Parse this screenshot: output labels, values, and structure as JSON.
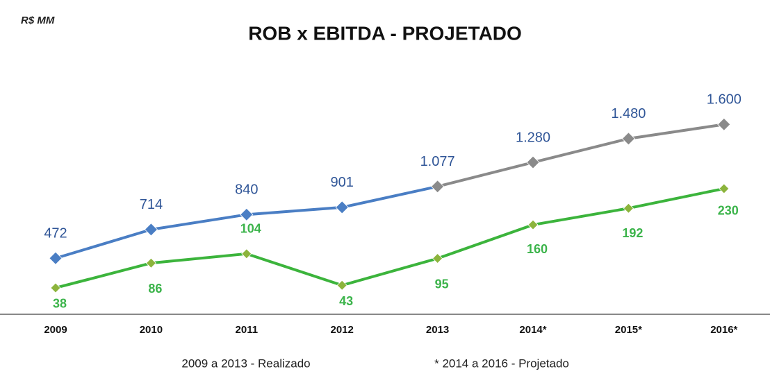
{
  "chart_data": {
    "type": "line",
    "unit_label": "R$ MM",
    "title": "ROB x EBITDA - PROJETADO",
    "categories": [
      "2009",
      "2010",
      "2011",
      "2012",
      "2013",
      "2014*",
      "2015*",
      "2016*"
    ],
    "series": [
      {
        "name": "ROB",
        "color": "#4a7ec4",
        "marker_colors": [
          "#4a7ec4",
          "#4a7ec4",
          "#4a7ec4",
          "#4a7ec4",
          "#8a8a8a",
          "#8a8a8a",
          "#8a8a8a",
          "#8a8a8a"
        ],
        "values": [
          472,
          714,
          840,
          901,
          1077,
          1280,
          1480,
          1600
        ],
        "value_labels": [
          "472",
          "714",
          "840",
          "901",
          "1.077",
          "1.280",
          "1.480",
          "1.600"
        ],
        "label_color": "#2f5597"
      },
      {
        "name": "EBITDA",
        "color": "#3cb43c",
        "axis": "y2",
        "values": [
          38,
          86,
          104,
          43,
          95,
          160,
          192,
          230
        ],
        "label_color": "#3cb44b"
      }
    ],
    "ylim": [
      0,
      1830
    ],
    "y2lim": [
      -13,
      407
    ],
    "notes": [
      "2009 a 2013 - Realizado",
      "* 2014 a 2016 - Projetado"
    ]
  }
}
